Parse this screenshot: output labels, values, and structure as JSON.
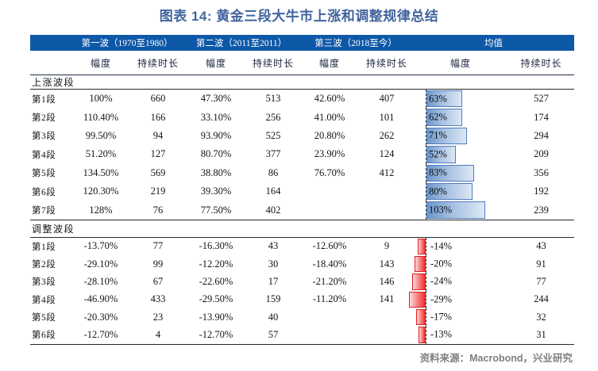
{
  "title": "图表 14: 黄金三段大牛市上涨和调整规律总结",
  "source": "资料来源：Macrobond，兴业研究",
  "colors": {
    "title_text": "#41649e",
    "header_band": "#0e58a8",
    "header_band_text": "#ffffff",
    "rise_bar_border": "#4c7cbe",
    "rise_bar_fill": "#6e97cb",
    "adjust_bar_border": "#e01f1f",
    "adjust_bar_fill": "#f03030"
  },
  "chart_data": {
    "type": "table",
    "title": "图表 14: 黄金三段大牛市上涨和调整规律总结",
    "wave_headers": [
      "第一波（1970至1980）",
      "第二波（2011至2011）",
      "第三波（2018至今）",
      "均值"
    ],
    "sub_headers": [
      "幅度",
      "持续时长",
      "幅度",
      "持续时长",
      "幅度",
      "持续时长",
      "幅度",
      "持续时长"
    ],
    "mean_amp_bar_style": "data-bar-with-dashed-zero-axis",
    "sections": [
      {
        "label": "上涨波段",
        "kind": "rising",
        "rows": [
          {
            "label": "第1段",
            "cells": [
              "100%",
              "660",
              "47.30%",
              "513",
              "42.60%",
              "407"
            ],
            "mean_amp": "63%",
            "mean_amp_value": 63,
            "mean_dur": "527"
          },
          {
            "label": "第2段",
            "cells": [
              "110.40%",
              "166",
              "33.10%",
              "256",
              "41.00%",
              "101"
            ],
            "mean_amp": "62%",
            "mean_amp_value": 62,
            "mean_dur": "174"
          },
          {
            "label": "第3段",
            "cells": [
              "99.50%",
              "94",
              "93.90%",
              "525",
              "20.80%",
              "262"
            ],
            "mean_amp": "71%",
            "mean_amp_value": 71,
            "mean_dur": "294"
          },
          {
            "label": "第4段",
            "cells": [
              "51.20%",
              "127",
              "80.70%",
              "377",
              "23.90%",
              "124"
            ],
            "mean_amp": "52%",
            "mean_amp_value": 52,
            "mean_dur": "209"
          },
          {
            "label": "第5段",
            "cells": [
              "134.50%",
              "569",
              "38.80%",
              "86",
              "76.70%",
              "412"
            ],
            "mean_amp": "83%",
            "mean_amp_value": 83,
            "mean_dur": "356"
          },
          {
            "label": "第6段",
            "cells": [
              "120.30%",
              "219",
              "39.30%",
              "164",
              "",
              ""
            ],
            "mean_amp": "80%",
            "mean_amp_value": 80,
            "mean_dur": "192"
          },
          {
            "label": "第7段",
            "cells": [
              "128%",
              "76",
              "77.50%",
              "402",
              "",
              ""
            ],
            "mean_amp": "103%",
            "mean_amp_value": 103,
            "mean_dur": "239"
          }
        ]
      },
      {
        "label": "调整波段",
        "kind": "adjustment",
        "rows": [
          {
            "label": "第1段",
            "cells": [
              "-13.70%",
              "77",
              "-16.30%",
              "43",
              "-12.60%",
              "9"
            ],
            "mean_amp": "-14%",
            "mean_amp_value": -14,
            "mean_dur": "43"
          },
          {
            "label": "第2段",
            "cells": [
              "-29.10%",
              "99",
              "-12.20%",
              "30",
              "-18.40%",
              "143"
            ],
            "mean_amp": "-20%",
            "mean_amp_value": -20,
            "mean_dur": "91"
          },
          {
            "label": "第3段",
            "cells": [
              "-28.10%",
              "67",
              "-22.60%",
              "17",
              "-21.20%",
              "146"
            ],
            "mean_amp": "-24%",
            "mean_amp_value": -24,
            "mean_dur": "77"
          },
          {
            "label": "第4段",
            "cells": [
              "-46.90%",
              "433",
              "-29.50%",
              "159",
              "-11.20%",
              "141"
            ],
            "mean_amp": "-29%",
            "mean_amp_value": -29,
            "mean_dur": "244"
          },
          {
            "label": "第5段",
            "cells": [
              "-20.30%",
              "23",
              "-13.90%",
              "40",
              "",
              ""
            ],
            "mean_amp": "-17%",
            "mean_amp_value": -17,
            "mean_dur": "32"
          },
          {
            "label": "第6段",
            "cells": [
              "-12.70%",
              "4",
              "-12.70%",
              "57",
              "",
              ""
            ],
            "mean_amp": "-13%",
            "mean_amp_value": -13,
            "mean_dur": "31"
          }
        ]
      }
    ]
  }
}
